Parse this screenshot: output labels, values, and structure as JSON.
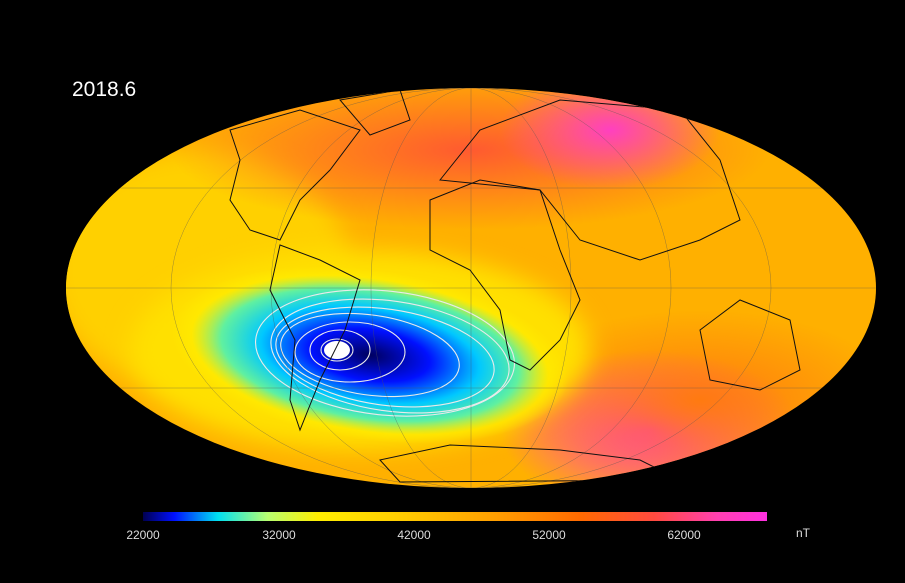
{
  "title": "2018.6",
  "colorbar": {
    "ticks": [
      "22000",
      "32000",
      "42000",
      "52000",
      "62000"
    ],
    "unit": "nT",
    "min": 22000,
    "max": 68000,
    "colors": [
      "#000050",
      "#0010ff",
      "#00e0f0",
      "#ffee00",
      "#ffa000",
      "#ff6a00",
      "#ff40b0",
      "#ff30e0"
    ]
  },
  "map": {
    "projection": "Mollweide",
    "quantity": "magnetic field intensity",
    "feature": "South Atlantic Anomaly"
  }
}
